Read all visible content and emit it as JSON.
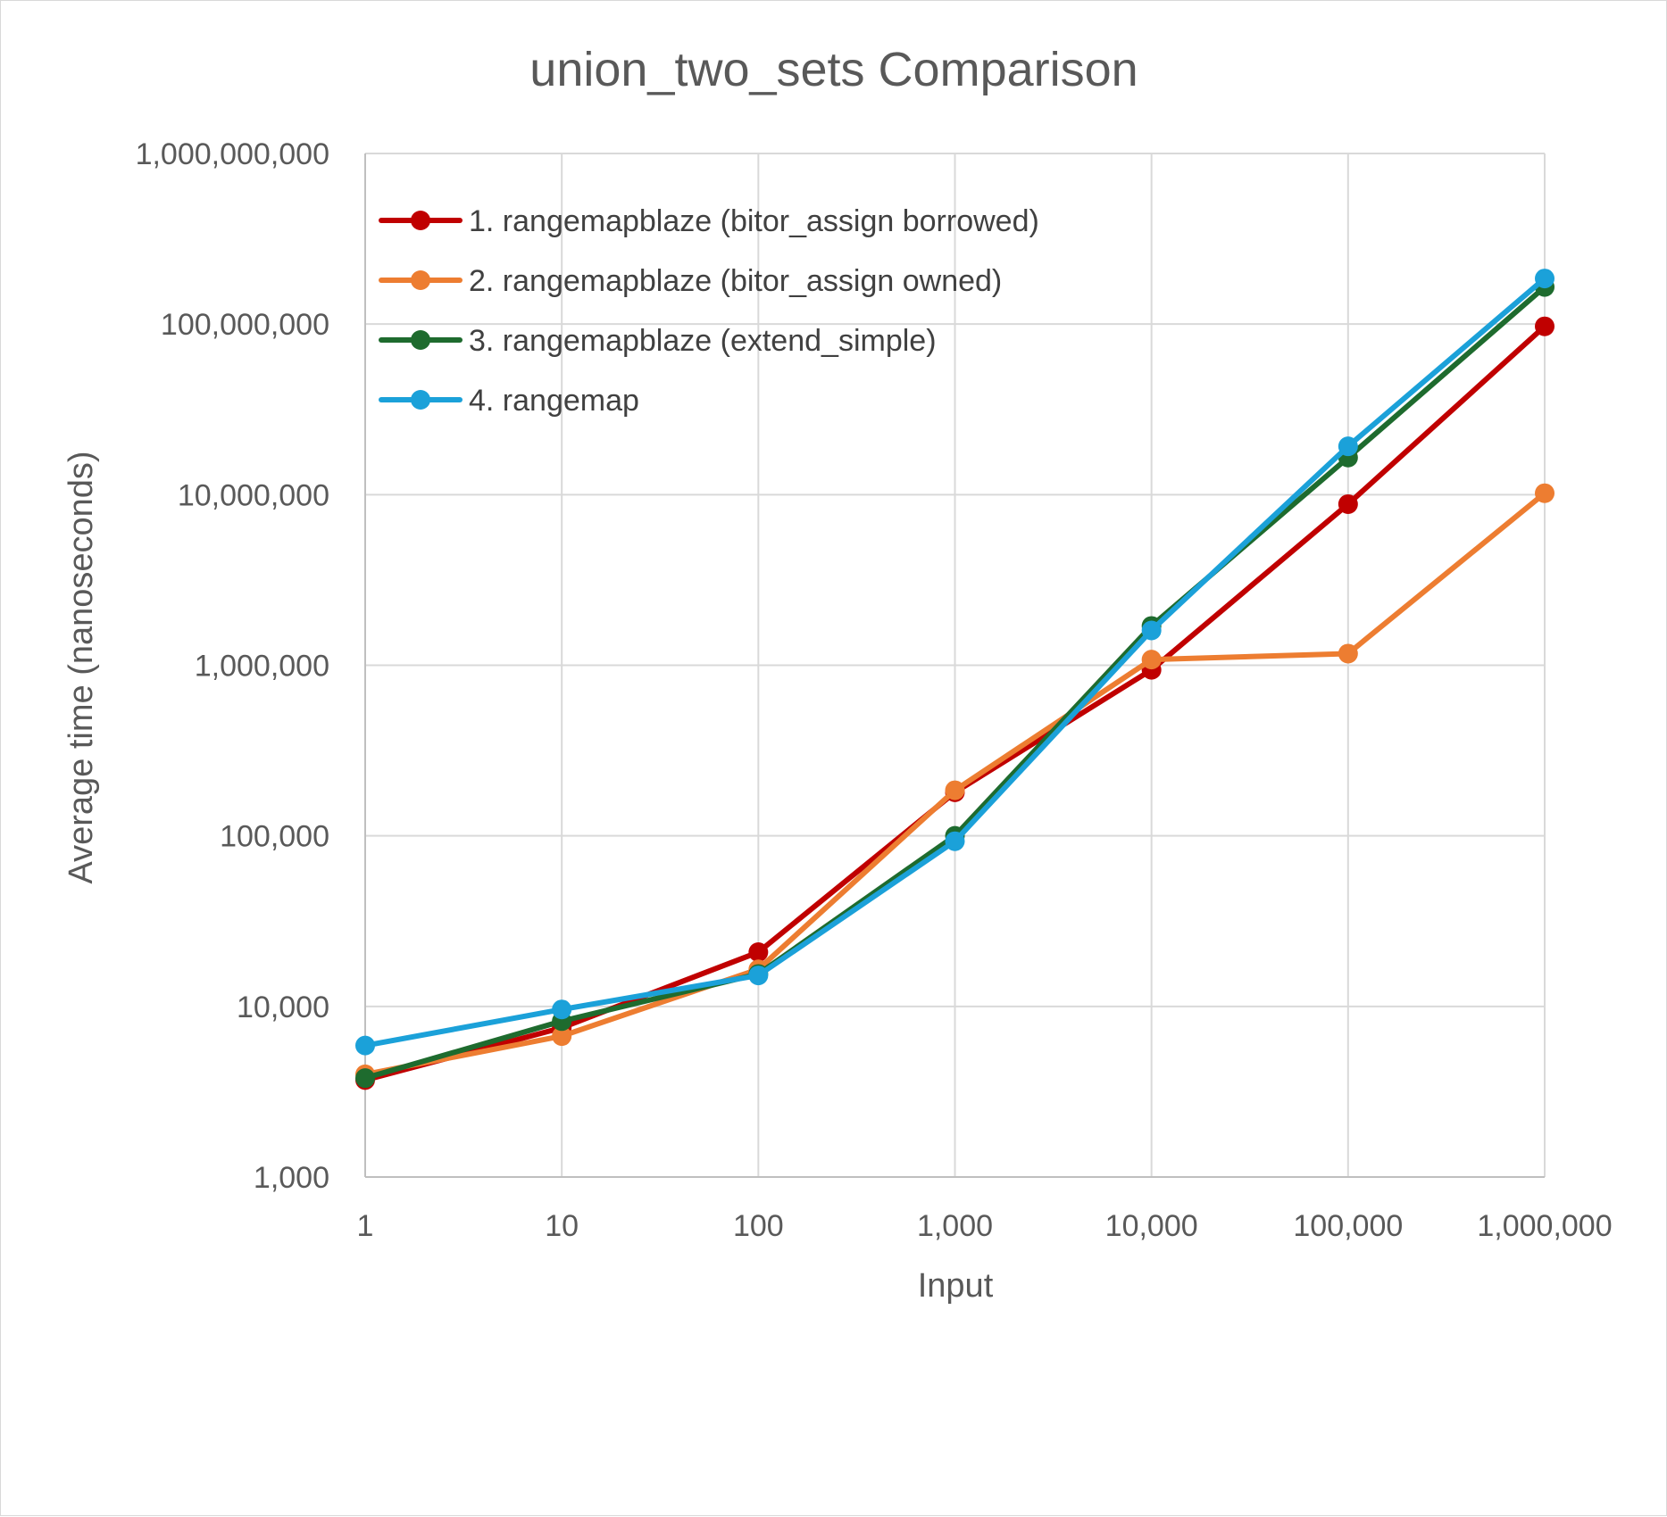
{
  "chart_data": {
    "type": "line",
    "title": "union_two_sets Comparison",
    "xlabel": "Input",
    "ylabel": "Average time (nanoseconds)",
    "x_scale": "log",
    "y_scale": "log",
    "x": [
      1,
      10,
      100,
      1000,
      10000,
      100000,
      1000000
    ],
    "x_tick_labels": [
      "1",
      "10",
      "100",
      "1,000",
      "10,000",
      "100,000",
      "1,000,000"
    ],
    "xlim": [
      1,
      1000000
    ],
    "y_tick_labels": [
      "1,000",
      "10,000",
      "100,000",
      "1,000,000",
      "10,000,000",
      "100,000,000",
      "1,000,000,000"
    ],
    "ylim": [
      1000,
      1000000000
    ],
    "grid": true,
    "legend_position": "top-left",
    "series": [
      {
        "name": "1. rangemapblaze (bitor_assign borrowed)",
        "color": "#C00000",
        "values": [
          3700,
          7500,
          20800,
          180000,
          940000,
          8800000,
          97000000
        ]
      },
      {
        "name": "2. rangemapblaze (bitor_assign owned)",
        "color": "#ED7D31",
        "values": [
          4000,
          6700,
          16500,
          185000,
          1080000,
          1170000,
          10200000
        ]
      },
      {
        "name": "3. rangemapblaze (extend_simple)",
        "color": "#1E6B2E",
        "values": [
          3800,
          8200,
          15500,
          100000,
          1700000,
          16500000,
          165000000
        ]
      },
      {
        "name": "4. rangemap",
        "color": "#1BA1D9",
        "values": [
          5900,
          9600,
          15200,
          93000,
          1600000,
          19200000,
          185000000
        ]
      }
    ]
  }
}
